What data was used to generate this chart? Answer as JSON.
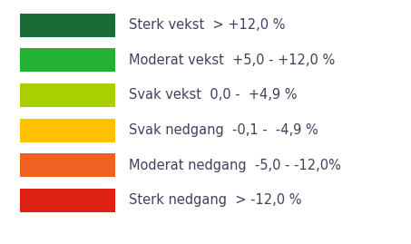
{
  "background_color": "#ffffff",
  "items": [
    {
      "color": "#1a6b35",
      "label": "Sterk vekst  > +12,0 %"
    },
    {
      "color": "#22b233",
      "label": "Moderat vekst  +5,0 - +12,0 %"
    },
    {
      "color": "#aacf00",
      "label": "Svak vekst  0,0 -  +4,9 %"
    },
    {
      "color": "#ffc000",
      "label": "Svak nedgang  -0,1 -  -4,9 %"
    },
    {
      "color": "#f06020",
      "label": "Moderat nedgang  -5,0 - -12,0%"
    },
    {
      "color": "#dd2211",
      "label": "Sterk nedgang  > -12,0 %"
    }
  ],
  "font_size": 10.5,
  "text_color": "#404060",
  "fig_width": 4.53,
  "fig_height": 2.69,
  "dpi": 100
}
